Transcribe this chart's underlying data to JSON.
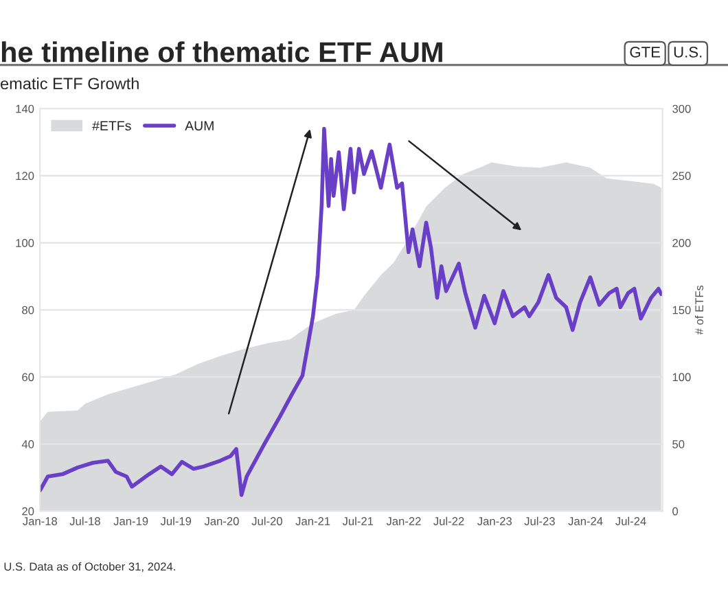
{
  "chart_data": {
    "type": "line",
    "title": "he timeline of thematic ETF AUM",
    "subtitle": "ematic ETF Growth",
    "y2label": "# of ETFs",
    "annotations": [
      "GTE",
      "U.S.",
      "U.S. Data as of October 31, 2024."
    ],
    "series": [
      {
        "name": "#ETFs",
        "type": "area",
        "axis": "y2",
        "color": "#d9dadc",
        "x": [
          "2018-01-01",
          "2018-02-01",
          "2018-06-01",
          "2018-07-01",
          "2018-10-01",
          "2019-01-01",
          "2019-07-01",
          "2019-10-01",
          "2020-01-01",
          "2020-04-01",
          "2020-07-01",
          "2020-10-01",
          "2021-01-01",
          "2021-04-01",
          "2021-06-15",
          "2021-08-01",
          "2021-10-01",
          "2021-11-20",
          "2022-01-20",
          "2022-04-01",
          "2022-06-15",
          "2022-08-25",
          "2022-11-01",
          "2022-12-20",
          "2023-03-25",
          "2023-07-01",
          "2023-10-15",
          "2024-01-20",
          "2024-03-25",
          "2024-07-01",
          "2024-10-01",
          "2024-10-31"
        ],
        "values": [
          67,
          74,
          75,
          80,
          87,
          92,
          102,
          110,
          116,
          121,
          125,
          128,
          140,
          147,
          150,
          162,
          176,
          185,
          203,
          227,
          241,
          251,
          256,
          260,
          257,
          256,
          260,
          256,
          248,
          246,
          244,
          241
        ]
      },
      {
        "name": "AUM",
        "color": "#6a3fc8",
        "x": [
          "2018-01-01",
          "2018-02-01",
          "2018-04-01",
          "2018-06-01",
          "2018-08-01",
          "2018-10-01",
          "2018-11-01",
          "2018-12-15",
          "2019-01-05",
          "2019-03-15",
          "2019-05-01",
          "2019-06-15",
          "2019-07-25",
          "2019-09-10",
          "2019-10-20",
          "2019-12-25",
          "2020-02-05",
          "2020-02-28",
          "2020-03-10",
          "2020-03-20",
          "2020-04-10",
          "2020-06-20",
          "2020-08-20",
          "2020-10-10",
          "2020-11-20",
          "2021-01-01",
          "2021-01-20",
          "2021-02-05",
          "2021-02-15",
          "2021-03-05",
          "2021-03-15",
          "2021-03-25",
          "2021-04-15",
          "2021-05-05",
          "2021-06-01",
          "2021-06-15",
          "2021-07-05",
          "2021-07-25",
          "2021-08-25",
          "2021-10-01",
          "2021-11-05",
          "2021-12-05",
          "2021-12-25",
          "2022-01-20",
          "2022-02-05",
          "2022-03-05",
          "2022-04-01",
          "2022-04-20",
          "2022-05-15",
          "2022-06-01",
          "2022-06-20",
          "2022-08-10",
          "2022-09-05",
          "2022-10-15",
          "2022-11-20",
          "2023-01-01",
          "2023-02-05",
          "2023-03-15",
          "2023-05-01",
          "2023-05-20",
          "2023-06-25",
          "2023-08-05",
          "2023-09-05",
          "2023-10-15",
          "2023-11-10",
          "2023-12-10",
          "2024-01-20",
          "2024-02-25",
          "2024-04-05",
          "2024-05-05",
          "2024-05-20",
          "2024-06-20",
          "2024-07-15",
          "2024-08-10",
          "2024-09-20",
          "2024-10-20",
          "2024-10-31"
        ],
        "values": [
          26.2,
          30.3,
          31,
          33,
          34.4,
          35,
          31.7,
          30.3,
          27.3,
          31,
          33.3,
          31,
          34.7,
          32.6,
          33.3,
          35,
          36.4,
          38.5,
          31.7,
          24.8,
          30.3,
          40,
          48,
          55,
          60.4,
          78,
          90.4,
          111,
          134,
          111,
          125,
          114,
          127,
          110,
          128,
          115,
          128,
          120.5,
          127.3,
          116.4,
          129.3,
          116.4,
          117.7,
          97.2,
          104,
          93,
          106,
          98.6,
          83.6,
          93,
          85.6,
          93.8,
          85,
          74.7,
          84.2,
          76,
          85.6,
          78.1,
          80.8,
          78.1,
          82.2,
          90.4,
          83.6,
          80.8,
          74,
          82.2,
          89.7,
          81.5,
          85,
          86.3,
          80.8,
          85,
          86.3,
          77.4,
          83.6,
          86.3,
          84.7
        ]
      }
    ],
    "xlim": [
      "2018-01-01",
      "2024-11-05"
    ],
    "xticks": [
      {
        "value": "2018-01",
        "label": "Jan-18"
      },
      {
        "value": "2018-07",
        "label": "Jul-18"
      },
      {
        "value": "2019-01",
        "label": "Jan-19"
      },
      {
        "value": "2019-07",
        "label": "Jul-19"
      },
      {
        "value": "2020-01",
        "label": "Jan-20"
      },
      {
        "value": "2020-07",
        "label": "Jul-20"
      },
      {
        "value": "2021-01",
        "label": "Jan-21"
      },
      {
        "value": "2021-07",
        "label": "Jul-21"
      },
      {
        "value": "2022-01",
        "label": "Jan-22"
      },
      {
        "value": "2022-07",
        "label": "Jul-22"
      },
      {
        "value": "2023-01",
        "label": "Jan-23"
      },
      {
        "value": "2023-07",
        "label": "Jul-23"
      },
      {
        "value": "2024-01",
        "label": "Jan-24"
      },
      {
        "value": "2024-07",
        "label": "Jul-24"
      }
    ],
    "ylim": [
      20,
      140
    ],
    "yticks": [
      20,
      40,
      60,
      80,
      100,
      120,
      140
    ],
    "y2lim": [
      0,
      300
    ],
    "y2ticks": [
      0,
      50,
      100,
      150,
      200,
      250,
      300
    ],
    "grid": "y",
    "legend": "top left"
  }
}
